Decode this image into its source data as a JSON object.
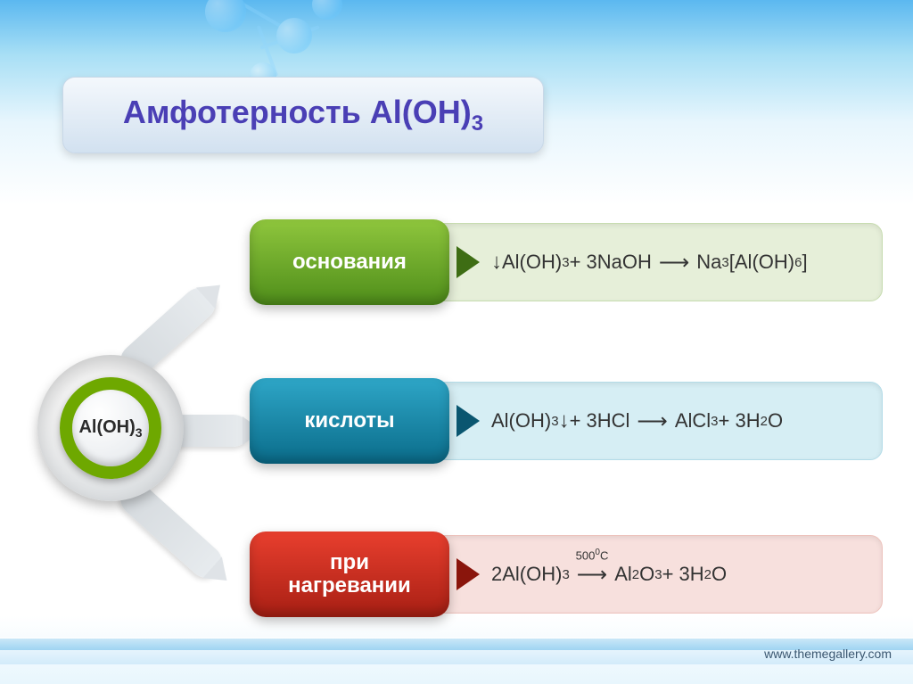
{
  "title": {
    "text": "Амфотерность Al(OH)",
    "subscript": "3",
    "color": "#4a3fb5",
    "fontsize": 36
  },
  "hub": {
    "formula_prefix": "Al(OH)",
    "formula_sub": "3",
    "ring_color": "#6ea800"
  },
  "rows": [
    {
      "key": "bases",
      "label": "основания",
      "label_bg": "linear-gradient(180deg,#8fc63d,#4f8e1a)",
      "panel_bg": "#e6efd9",
      "panel_border": "#c7dcb0",
      "wedge_color": "#3e6d14",
      "formula_html": "<span class='down'>↓</span>Al(OH)<span class='sub'>3</span> + 3NaOH<span class='arrow'>⟶</span> Na<span class='sub'>3</span>[Al(OH)<span class='sub'>6</span>]"
    },
    {
      "key": "acids",
      "label": "кислоты",
      "label_bg": "linear-gradient(180deg,#2ea6c7,#0a6c8a)",
      "panel_bg": "#d6eef4",
      "panel_border": "#b3dce8",
      "wedge_color": "#0a5670",
      "formula_html": "Al(OH)<span class='sub'>3</span><span class='down'>↓</span>+ 3HCl <span class='arrow'>⟶</span> AlCl<span class='sub'>3</span> + 3H<span class='sub'>2</span>O"
    },
    {
      "key": "heating",
      "label": "при\nнагревании",
      "label_bg": "linear-gradient(180deg,#e83f2e,#a81f14)",
      "panel_bg": "#f7e0dd",
      "panel_border": "#edc2bc",
      "wedge_color": "#8a150c",
      "formula_html": "2Al(OH)<span class='sub'>3</span><span class='over'><span class='top'>500<span style=\"font-size:10px;vertical-align:super\">0</span>C</span><span class='arrow'>⟶</span></span> Al<span class='sub'>2</span>O<span class='sub'>3</span> + 3H<span class='sub'>2</span>O"
    }
  ],
  "layout": {
    "row_tops": [
      246,
      424,
      596
    ],
    "arm_tops": [
      408,
      478,
      548
    ],
    "arm_rotations": [
      -42,
      0,
      42
    ]
  },
  "footer_url": "www.themegallery.com",
  "colors": {
    "bg_top": "#5bb8f0",
    "bg_light": "#e8f6fd"
  }
}
